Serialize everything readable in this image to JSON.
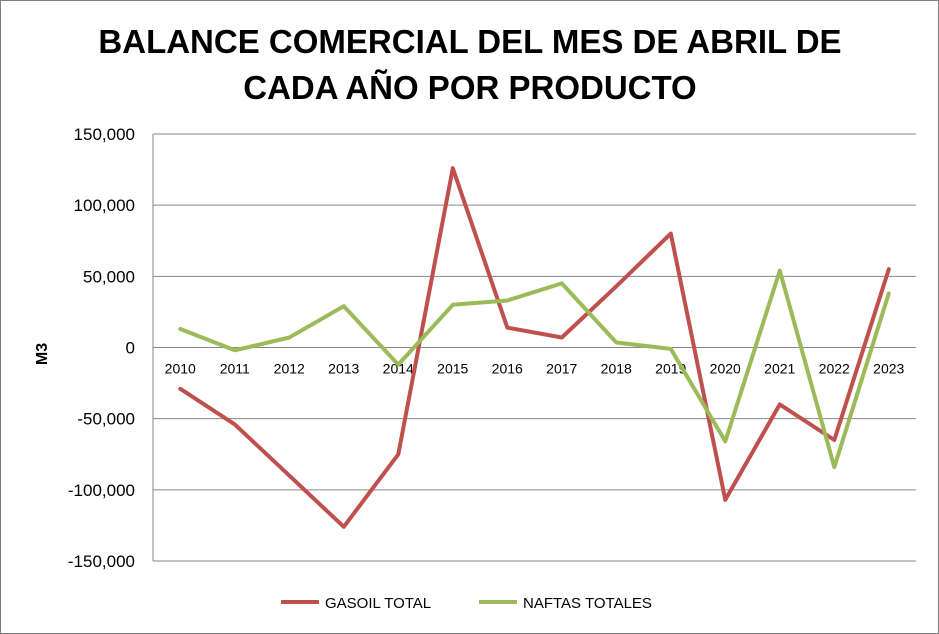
{
  "chart_data": {
    "type": "line",
    "title_lines": [
      "BALANCE COMERCIAL DEL MES DE ABRIL DE",
      "CADA AÑO POR PRODUCTO"
    ],
    "xlabel": "",
    "ylabel": "M3",
    "ylim": [
      -150000,
      150000
    ],
    "y_ticks": [
      150000,
      100000,
      50000,
      0,
      -50000,
      -100000,
      -150000
    ],
    "y_tick_labels": [
      "150,000",
      "100,000",
      "50,000",
      "0",
      "-50,000",
      "-100,000",
      "-150,000"
    ],
    "categories": [
      "2010",
      "2011",
      "2012",
      "2013",
      "2014",
      "2015",
      "2016",
      "2017",
      "2018",
      "2019",
      "2020",
      "2021",
      "2022",
      "2023"
    ],
    "grid": true,
    "legend_position": "bottom",
    "series": [
      {
        "name": "GASOIL TOTAL",
        "color": "#c0504d",
        "values": [
          -29000,
          -54000,
          -90000,
          -126000,
          -75000,
          126000,
          14000,
          7000,
          43000,
          80000,
          -107000,
          -40000,
          -65000,
          55000
        ]
      },
      {
        "name": "NAFTAS TOTALES",
        "color": "#9bbb59",
        "values": [
          13000,
          -2000,
          7000,
          29000,
          -12000,
          30000,
          33000,
          45000,
          3500,
          -1000,
          -66000,
          54000,
          -84000,
          38000
        ]
      }
    ]
  }
}
